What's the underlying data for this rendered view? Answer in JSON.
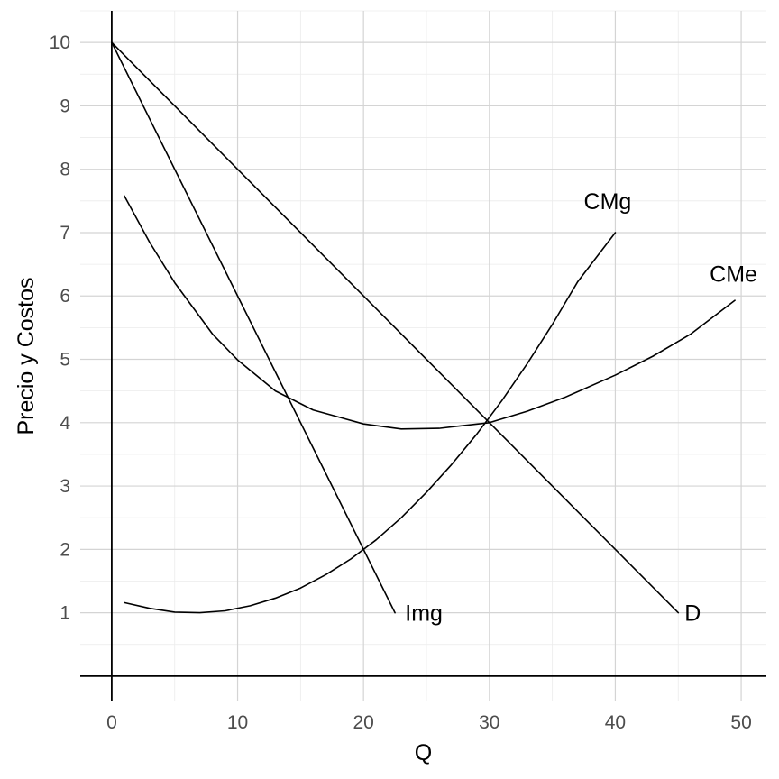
{
  "chart_data": {
    "type": "line",
    "title": "",
    "xlabel": "Q",
    "ylabel": "Precio y Costos",
    "xlim": [
      -2.5,
      52
    ],
    "ylim": [
      -0.4,
      10.5
    ],
    "x_ticks": [
      0,
      10,
      20,
      30,
      40,
      50
    ],
    "y_ticks": [
      1,
      2,
      3,
      4,
      5,
      6,
      7,
      8,
      9,
      10
    ],
    "grid": true,
    "legend": "none",
    "series": [
      {
        "name": "D",
        "x": [
          0,
          45
        ],
        "y": [
          10,
          1
        ]
      },
      {
        "name": "Img",
        "x": [
          0,
          22.5
        ],
        "y": [
          10,
          1
        ]
      },
      {
        "name": "CMg",
        "x": [
          1,
          3,
          5,
          7,
          9,
          11,
          13,
          15,
          17,
          19,
          21,
          23,
          25,
          27,
          29,
          31,
          33,
          35,
          37,
          40
        ],
        "y": [
          1.16,
          1.07,
          1.01,
          1.0,
          1.03,
          1.11,
          1.23,
          1.39,
          1.6,
          1.85,
          2.15,
          2.5,
          2.9,
          3.34,
          3.82,
          4.35,
          4.93,
          5.55,
          6.22,
          7.0
        ]
      },
      {
        "name": "CMe",
        "x": [
          1,
          3,
          5,
          8,
          10,
          13,
          16,
          20,
          23,
          26,
          30,
          33,
          36,
          40,
          43,
          46,
          49.5
        ],
        "y": [
          7.58,
          6.85,
          6.21,
          5.4,
          4.99,
          4.5,
          4.2,
          3.98,
          3.9,
          3.91,
          4.0,
          4.18,
          4.4,
          4.75,
          5.05,
          5.4,
          5.93
        ]
      }
    ],
    "annotations": [
      {
        "text": "Img",
        "x": 23.3,
        "y": 1.0
      },
      {
        "text": "D",
        "x": 45.5,
        "y": 1.0
      },
      {
        "text": "CMg",
        "x": 37.5,
        "y": 7.5
      },
      {
        "text": "CMe",
        "x": 47.5,
        "y": 6.35
      }
    ]
  }
}
